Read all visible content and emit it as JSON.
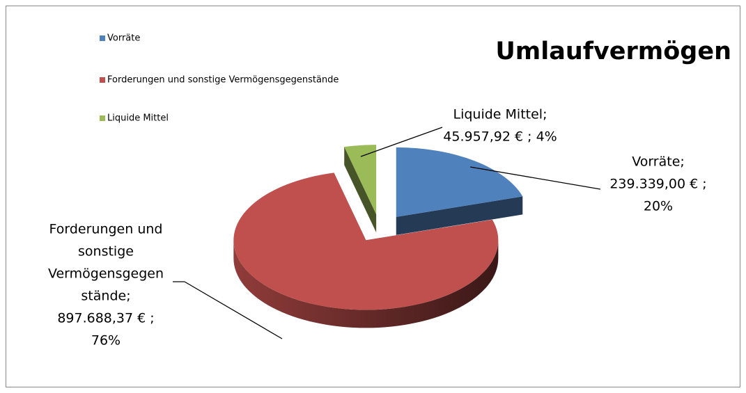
{
  "chart_data": {
    "type": "pie3d",
    "title": "Umlaufvermögen",
    "categories": [
      "Vorräte",
      "Forderungen und sonstige Vermögensgegenstände",
      "Liquide Mittel"
    ],
    "values": [
      239339.0,
      897688.37,
      45957.92
    ],
    "colors": [
      "#4f81bd",
      "#c0504d",
      "#9bbb59"
    ],
    "data_labels": [
      [
        "Vorräte;",
        "239.339,00 € ;",
        "20%"
      ],
      [
        "Forderungen und",
        "sonstige",
        "Vermögensgegen",
        "stände;",
        "897.688,37 € ;",
        "76%"
      ],
      [
        "Liquide Mittel;",
        "45.957,92 € ; 4%"
      ]
    ],
    "legend": "top-left"
  }
}
